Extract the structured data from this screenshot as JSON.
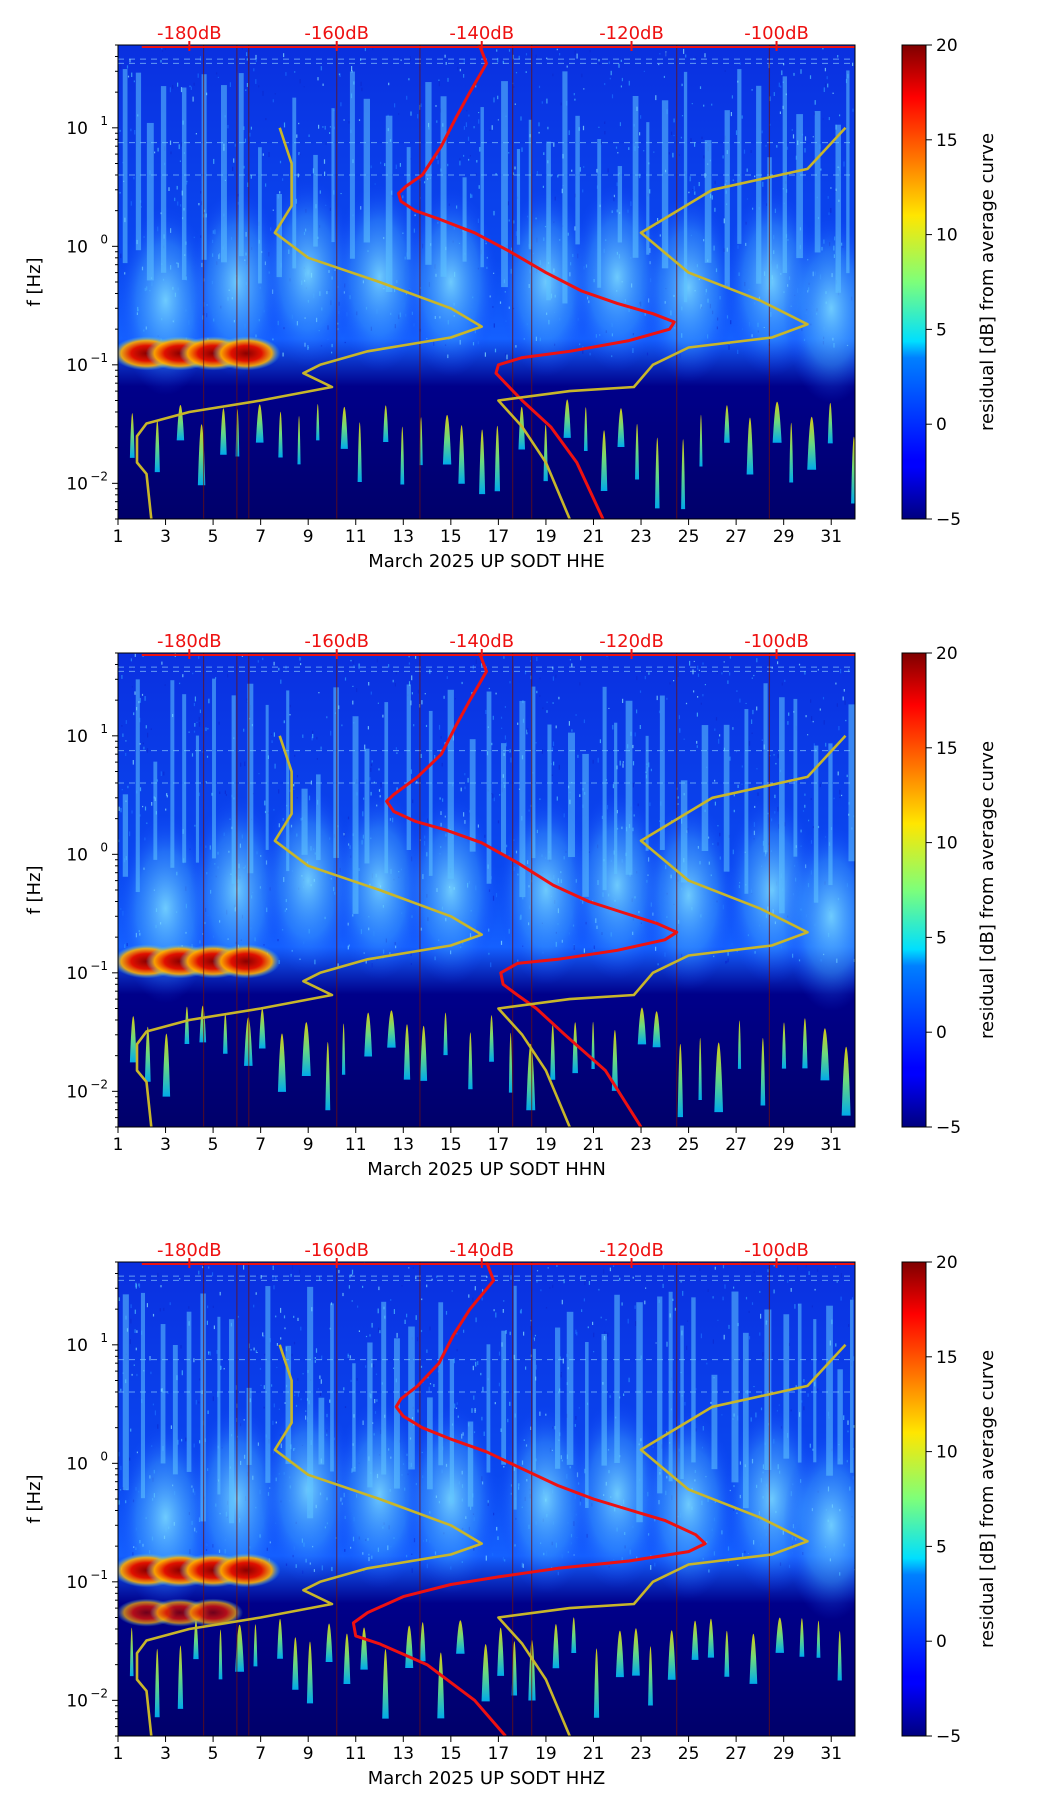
{
  "chart_data": [
    {
      "type": "heatmap",
      "title": "",
      "xlabel": "March 2025 UP SODT  HHE",
      "ylabel": "f [Hz]",
      "x_ticks": [
        "1",
        "3",
        "5",
        "7",
        "9",
        "11",
        "13",
        "15",
        "17",
        "19",
        "21",
        "23",
        "25",
        "27",
        "29",
        "31"
      ],
      "y_ticks": [
        "10^-2",
        "10^-1",
        "10^0",
        "10^1"
      ],
      "y_range": [
        0.005,
        50
      ],
      "x_range": [
        1,
        32
      ],
      "top_ticks": [
        "-180dB",
        "-160dB",
        "-140dB",
        "-120dB",
        "-100dB"
      ],
      "colorbar": {
        "label": "residual [dB] from average curve",
        "ticks": [
          "−5",
          "0",
          "5",
          "10",
          "15",
          "20"
        ],
        "range": [
          -5,
          20
        ]
      },
      "series": [
        {
          "name": "average PSD curve",
          "color": "#ee1111",
          "points": [
            [
              16.2,
              50
            ],
            [
              16.5,
              35
            ],
            [
              15.8,
              20
            ],
            [
              15.2,
              12
            ],
            [
              14.6,
              7
            ],
            [
              13.8,
              4
            ],
            [
              13.1,
              3.2
            ],
            [
              12.8,
              2.8
            ],
            [
              12.9,
              2.4
            ],
            [
              13.5,
              2
            ],
            [
              14.5,
              1.7
            ],
            [
              16,
              1.3
            ],
            [
              17.5,
              0.9
            ],
            [
              19,
              0.6
            ],
            [
              20.5,
              0.42
            ],
            [
              22,
              0.33
            ],
            [
              23.5,
              0.27
            ],
            [
              24.4,
              0.23
            ],
            [
              24.2,
              0.2
            ],
            [
              22.5,
              0.16
            ],
            [
              20,
              0.13
            ],
            [
              18,
              0.115
            ],
            [
              17,
              0.1
            ],
            [
              16.9,
              0.085
            ],
            [
              17.3,
              0.07
            ],
            [
              18,
              0.05
            ],
            [
              19.2,
              0.03
            ],
            [
              20.3,
              0.015
            ],
            [
              21.4,
              0.005
            ]
          ]
        },
        {
          "name": "noise model bounds",
          "color": "#c8b62a",
          "points": [
            [
              7.8,
              10
            ],
            [
              8.3,
              5
            ],
            [
              8.3,
              2.2
            ],
            [
              7.6,
              1.3
            ],
            [
              9,
              0.8
            ],
            [
              12,
              0.5
            ],
            [
              15,
              0.3
            ],
            [
              16.3,
              0.21
            ],
            [
              15,
              0.17
            ],
            [
              11.5,
              0.13
            ],
            [
              9.5,
              0.1
            ],
            [
              8.8,
              0.085
            ],
            [
              10,
              0.065
            ],
            [
              7,
              0.05
            ],
            [
              4,
              0.04
            ],
            [
              2.2,
              0.032
            ],
            [
              1.8,
              0.025
            ],
            [
              1.8,
              0.015
            ],
            [
              2.2,
              0.012
            ],
            [
              2.4,
              0.005
            ]
          ]
        },
        {
          "name": "noise model bounds 2",
          "color": "#c8b62a",
          "points": [
            [
              31.6,
              10
            ],
            [
              30,
              4.5
            ],
            [
              26,
              3
            ],
            [
              23,
              1.3
            ],
            [
              25,
              0.6
            ],
            [
              28,
              0.35
            ],
            [
              30,
              0.22
            ],
            [
              28.5,
              0.17
            ],
            [
              25,
              0.14
            ],
            [
              23.5,
              0.1
            ],
            [
              22.7,
              0.065
            ],
            [
              20,
              0.06
            ],
            [
              17,
              0.05
            ],
            [
              18,
              0.03
            ],
            [
              19,
              0.015
            ],
            [
              20,
              0.005
            ]
          ]
        }
      ]
    },
    {
      "type": "heatmap",
      "title": "",
      "xlabel": "March 2025 UP SODT  HHN",
      "ylabel": "f [Hz]",
      "x_ticks": [
        "1",
        "3",
        "5",
        "7",
        "9",
        "11",
        "13",
        "15",
        "17",
        "19",
        "21",
        "23",
        "25",
        "27",
        "29",
        "31"
      ],
      "y_ticks": [
        "10^-2",
        "10^-1",
        "10^0",
        "10^1"
      ],
      "y_range": [
        0.005,
        50
      ],
      "x_range": [
        1,
        32
      ],
      "top_ticks": [
        "-180dB",
        "-160dB",
        "-140dB",
        "-120dB",
        "-100dB"
      ],
      "colorbar": {
        "label": "residual [dB] from average curve",
        "ticks": [
          "−5",
          "0",
          "5",
          "10",
          "15",
          "20"
        ],
        "range": [
          -5,
          20
        ]
      },
      "series": [
        {
          "name": "average PSD curve",
          "color": "#ee1111",
          "points": [
            [
              16.2,
              50
            ],
            [
              16.5,
              35
            ],
            [
              15.8,
              20
            ],
            [
              15.2,
              12
            ],
            [
              14.6,
              7
            ],
            [
              13.6,
              4.5
            ],
            [
              12.6,
              3.2
            ],
            [
              12.3,
              2.8
            ],
            [
              12.6,
              2.3
            ],
            [
              13.5,
              1.9
            ],
            [
              14.8,
              1.6
            ],
            [
              16.3,
              1.25
            ],
            [
              17.8,
              0.85
            ],
            [
              19.3,
              0.55
            ],
            [
              20.8,
              0.4
            ],
            [
              22.3,
              0.32
            ],
            [
              23.7,
              0.26
            ],
            [
              24.5,
              0.22
            ],
            [
              24,
              0.19
            ],
            [
              22,
              0.155
            ],
            [
              19.5,
              0.13
            ],
            [
              17.8,
              0.12
            ],
            [
              17.1,
              0.1
            ],
            [
              17.2,
              0.08
            ],
            [
              17.8,
              0.065
            ],
            [
              18.6,
              0.05
            ],
            [
              19.8,
              0.03
            ],
            [
              21.5,
              0.015
            ],
            [
              23,
              0.005
            ]
          ]
        },
        {
          "name": "noise model bounds",
          "color": "#c8b62a",
          "points": [
            [
              7.8,
              10
            ],
            [
              8.3,
              5
            ],
            [
              8.3,
              2.2
            ],
            [
              7.6,
              1.3
            ],
            [
              9,
              0.8
            ],
            [
              12,
              0.5
            ],
            [
              15,
              0.3
            ],
            [
              16.3,
              0.21
            ],
            [
              15,
              0.17
            ],
            [
              11.5,
              0.13
            ],
            [
              9.5,
              0.1
            ],
            [
              8.8,
              0.085
            ],
            [
              10,
              0.065
            ],
            [
              7,
              0.05
            ],
            [
              4,
              0.04
            ],
            [
              2.2,
              0.032
            ],
            [
              1.8,
              0.025
            ],
            [
              1.8,
              0.015
            ],
            [
              2.2,
              0.012
            ],
            [
              2.4,
              0.005
            ]
          ]
        },
        {
          "name": "noise model bounds 2",
          "color": "#c8b62a",
          "points": [
            [
              31.6,
              10
            ],
            [
              30,
              4.5
            ],
            [
              26,
              3
            ],
            [
              23,
              1.3
            ],
            [
              25,
              0.6
            ],
            [
              28,
              0.35
            ],
            [
              30,
              0.22
            ],
            [
              28.5,
              0.17
            ],
            [
              25,
              0.14
            ],
            [
              23.5,
              0.1
            ],
            [
              22.7,
              0.065
            ],
            [
              20,
              0.06
            ],
            [
              17,
              0.05
            ],
            [
              18,
              0.03
            ],
            [
              19,
              0.015
            ],
            [
              20,
              0.005
            ]
          ]
        }
      ]
    },
    {
      "type": "heatmap",
      "title": "",
      "xlabel": "March 2025 UP SODT  HHZ",
      "ylabel": "f [Hz]",
      "x_ticks": [
        "1",
        "3",
        "5",
        "7",
        "9",
        "11",
        "13",
        "15",
        "17",
        "19",
        "21",
        "23",
        "25",
        "27",
        "29",
        "31"
      ],
      "y_ticks": [
        "10^-2",
        "10^-1",
        "10^0",
        "10^1"
      ],
      "y_range": [
        0.005,
        50
      ],
      "x_range": [
        1,
        32
      ],
      "top_ticks": [
        "-180dB",
        "-160dB",
        "-140dB",
        "-120dB",
        "-100dB"
      ],
      "colorbar": {
        "label": "residual [dB] from average curve",
        "ticks": [
          "−5",
          "0",
          "5",
          "10",
          "15",
          "20"
        ],
        "range": [
          -5,
          20
        ]
      },
      "series": [
        {
          "name": "average PSD curve",
          "color": "#ee1111",
          "points": [
            [
              16.5,
              50
            ],
            [
              16.8,
              35
            ],
            [
              15.8,
              20
            ],
            [
              15.1,
              12
            ],
            [
              14.5,
              7
            ],
            [
              13.6,
              4.5
            ],
            [
              12.9,
              3.5
            ],
            [
              12.7,
              3
            ],
            [
              13,
              2.5
            ],
            [
              13.8,
              2
            ],
            [
              15,
              1.6
            ],
            [
              16.5,
              1.25
            ],
            [
              18,
              0.9
            ],
            [
              19.5,
              0.65
            ],
            [
              21,
              0.5
            ],
            [
              22.6,
              0.4
            ],
            [
              24,
              0.33
            ],
            [
              25.3,
              0.25
            ],
            [
              25.7,
              0.21
            ],
            [
              25,
              0.18
            ],
            [
              22.5,
              0.15
            ],
            [
              19.5,
              0.13
            ],
            [
              17,
              0.11
            ],
            [
              15,
              0.095
            ],
            [
              13,
              0.075
            ],
            [
              11.5,
              0.055
            ],
            [
              10.9,
              0.045
            ],
            [
              11,
              0.035
            ],
            [
              12,
              0.03
            ],
            [
              14,
              0.02
            ],
            [
              16,
              0.01
            ],
            [
              17.3,
              0.005
            ]
          ]
        },
        {
          "name": "noise model bounds",
          "color": "#c8b62a",
          "points": [
            [
              7.8,
              10
            ],
            [
              8.3,
              5
            ],
            [
              8.3,
              2.2
            ],
            [
              7.6,
              1.3
            ],
            [
              9,
              0.8
            ],
            [
              12,
              0.5
            ],
            [
              15,
              0.3
            ],
            [
              16.3,
              0.21
            ],
            [
              15,
              0.17
            ],
            [
              11.5,
              0.13
            ],
            [
              9.5,
              0.1
            ],
            [
              8.8,
              0.085
            ],
            [
              10,
              0.065
            ],
            [
              7,
              0.05
            ],
            [
              4,
              0.04
            ],
            [
              2.2,
              0.032
            ],
            [
              1.8,
              0.025
            ],
            [
              1.8,
              0.015
            ],
            [
              2.2,
              0.012
            ],
            [
              2.4,
              0.005
            ]
          ]
        },
        {
          "name": "noise model bounds 2",
          "color": "#c8b62a",
          "points": [
            [
              31.6,
              10
            ],
            [
              30,
              4.5
            ],
            [
              26,
              3
            ],
            [
              23,
              1.3
            ],
            [
              25,
              0.6
            ],
            [
              28,
              0.35
            ],
            [
              30,
              0.22
            ],
            [
              28.5,
              0.17
            ],
            [
              25,
              0.14
            ],
            [
              23.5,
              0.1
            ],
            [
              22.7,
              0.065
            ],
            [
              20,
              0.06
            ],
            [
              17,
              0.05
            ],
            [
              18,
              0.03
            ],
            [
              19,
              0.015
            ],
            [
              20,
              0.005
            ]
          ]
        }
      ]
    }
  ]
}
